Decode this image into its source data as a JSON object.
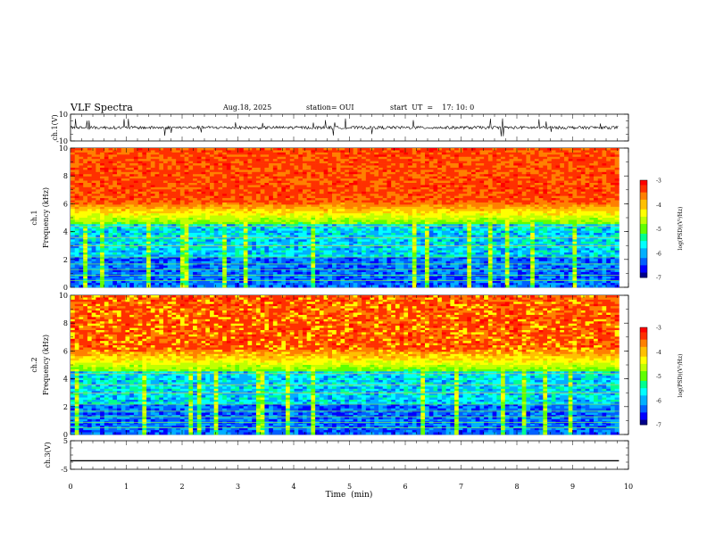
{
  "header": {
    "title": "VLF Spectra",
    "date": "Aug.18, 2025",
    "station": "station= OUI",
    "start": "start  UT  =    17: 10: 0"
  },
  "colors": {
    "scale": [
      "#000080",
      "#0000ff",
      "#0080ff",
      "#00ffff",
      "#00ff80",
      "#80ff00",
      "#ffff00",
      "#ff8000",
      "#ff0000",
      "#ffffff"
    ],
    "trace": "#000000",
    "axis": "#000000"
  },
  "chart_data": [
    {
      "type": "line",
      "name": "ch1-waveform",
      "ylabel": "ch.1(V)",
      "ylim": [
        -10,
        10
      ],
      "yticks": [
        "10",
        "-10"
      ],
      "xlim": [
        0,
        10
      ],
      "description_values": "noisy trace around 0 V, amplitude ~±1 V with spikes to ~±5 V"
    },
    {
      "type": "heatmap",
      "name": "ch1-spectrogram",
      "ylabel": "ch.1",
      "ylabel2": "Frequency  (kHz)",
      "ylim": [
        0,
        10
      ],
      "yticks": [
        "10",
        "8",
        "6",
        "4",
        "2",
        "0"
      ],
      "xlim": [
        0,
        9.83
      ],
      "colorbar": {
        "label": "log(PSD)(V²/Hz)",
        "range": [
          -7,
          -3
        ],
        "ticks": [
          "-3",
          "-4",
          "-5",
          "-6",
          "-7"
        ]
      }
    },
    {
      "type": "heatmap",
      "name": "ch2-spectrogram",
      "ylabel": "ch.2",
      "ylabel2": "Frequency  (kHz)",
      "ylim": [
        0,
        10
      ],
      "yticks": [
        "10",
        "8",
        "6",
        "4",
        "2",
        "0"
      ],
      "xlim": [
        0,
        9.83
      ],
      "colorbar": {
        "label": "log(PSD)(V²/Hz)",
        "range": [
          -7,
          -3
        ],
        "ticks": [
          "-3",
          "-4",
          "-5",
          "-6",
          "-7"
        ]
      }
    },
    {
      "type": "line",
      "name": "ch3-waveform",
      "ylabel": "ch.3(V)",
      "ylim": [
        -5,
        5
      ],
      "yticks": [
        "5",
        "-5"
      ],
      "x": [
        0,
        9.83
      ],
      "values": [
        -2,
        -2
      ]
    }
  ],
  "xaxis": {
    "label": "Time  (min)",
    "ticks": [
      "0",
      "1",
      "2",
      "3",
      "4",
      "5",
      "6",
      "7",
      "8",
      "9",
      "10"
    ],
    "range": [
      0,
      10
    ]
  }
}
